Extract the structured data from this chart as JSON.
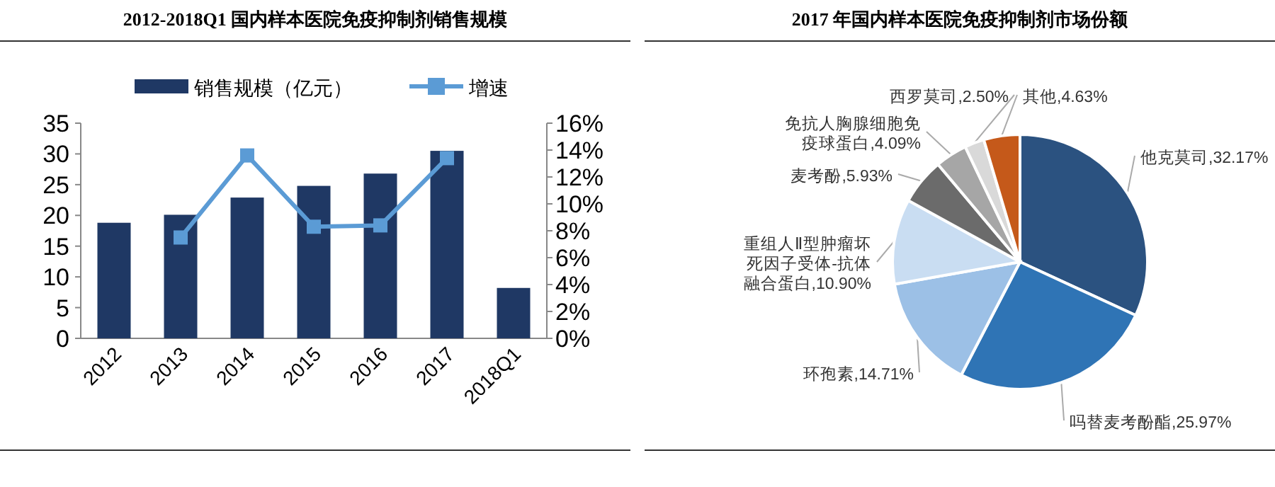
{
  "chart_data": [
    {
      "type": "bar",
      "title": "2012-2018Q1 国内样本医院免疫抑制剂销售规模",
      "categories": [
        "2012",
        "2013",
        "2014",
        "2015",
        "2016",
        "2017",
        "2018Q1"
      ],
      "series": [
        {
          "name": "销售规模（亿元）",
          "color": "#1f3864",
          "values": [
            18.8,
            20.1,
            22.9,
            24.8,
            26.8,
            30.5,
            8.2
          ]
        },
        {
          "name": "增速",
          "type": "line",
          "axis": "y2",
          "color": "#5b9bd5",
          "values": [
            null,
            7.5,
            13.6,
            8.3,
            8.4,
            13.4,
            null
          ]
        }
      ],
      "ylim": [
        0,
        35
      ],
      "yticks": [
        0,
        5,
        10,
        15,
        20,
        25,
        30,
        35
      ],
      "y2lim": [
        0,
        16
      ],
      "y2ticks": [
        {
          "value": 0,
          "label": "0%"
        },
        {
          "value": 2,
          "label": "2%"
        },
        {
          "value": 4,
          "label": "4%"
        },
        {
          "value": 6,
          "label": "6%"
        },
        {
          "value": 8,
          "label": "8%"
        },
        {
          "value": 10,
          "label": "10%"
        },
        {
          "value": 12,
          "label": "12%"
        },
        {
          "value": 14,
          "label": "14%"
        },
        {
          "value": 16,
          "label": "16%"
        }
      ],
      "marker": "square",
      "legend": "top"
    },
    {
      "type": "pie",
      "title": "2017 年国内样本医院免疫抑制剂市场份额",
      "categories": [
        "他克莫司",
        "吗替麦考酚酯",
        "环孢素",
        "重组人Ⅱ型肿瘤坏死因子受体-抗体融合蛋白",
        "麦考酚",
        "免抗人胸腺细胞免疫球蛋白",
        "西罗莫司",
        "其他"
      ],
      "values": [
        32.17,
        25.97,
        14.71,
        10.9,
        5.93,
        4.09,
        2.5,
        4.63
      ],
      "value_labels": [
        "32.17%",
        "25.97%",
        "14.71%",
        "10.90%",
        "5.93%",
        "4.09%",
        "2.50%",
        "4.63%"
      ],
      "colors": [
        "#2b5280",
        "#2f74b5",
        "#9cc0e6",
        "#c9ddf2",
        "#6b6b6b",
        "#a6a6a6",
        "#d9d9d9",
        "#c5591a"
      ]
    }
  ]
}
